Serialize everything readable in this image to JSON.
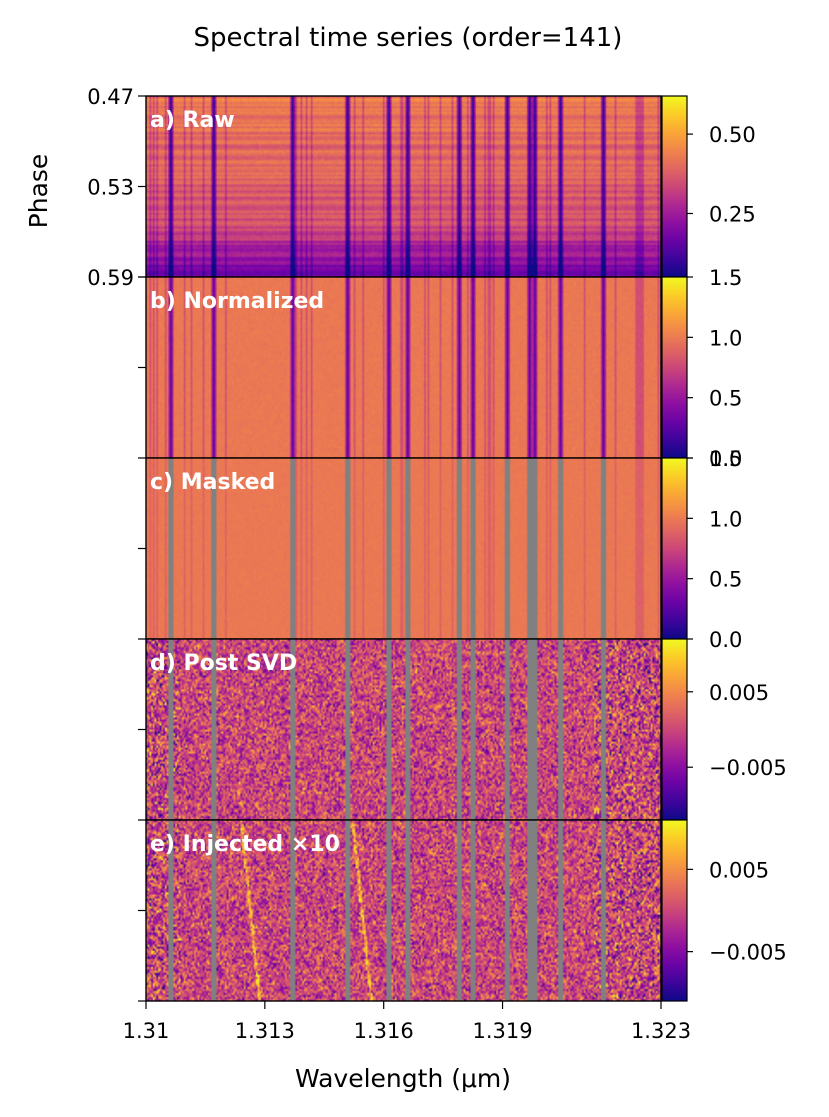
{
  "chart_data": {
    "type": "heatmap",
    "title": "Spectral time series (order=141)",
    "xlabel": "Wavelength (μm)",
    "ylabel": "Phase",
    "xlim": [
      1.31,
      1.323
    ],
    "x_ticks": [
      "1.31",
      "1.313",
      "1.316",
      "1.319",
      "1.323"
    ],
    "x_tick_values": [
      1.31,
      1.313,
      1.316,
      1.319,
      1.323
    ],
    "y_ticks": [
      "0.47",
      "0.53",
      "0.59"
    ],
    "y_tick_values": [
      0.47,
      0.53,
      0.59
    ],
    "colormap": "plasma",
    "mask_color": "#808080",
    "telluric_lines_um": [
      1.31061,
      1.31169,
      1.3137,
      1.31505,
      1.31611,
      1.31657,
      1.31787,
      1.31825,
      1.3191,
      1.31965,
      1.3198,
      1.32045,
      1.32153
    ],
    "panels": [
      {
        "label": "a) Raw",
        "kind": "raw",
        "colorbar": {
          "range": [
            0.05,
            0.62
          ],
          "ticks": [
            "0.25",
            "0.50"
          ],
          "tick_values": [
            0.25,
            0.5
          ]
        }
      },
      {
        "label": "b) Normalized",
        "kind": "normalized",
        "colorbar": {
          "range": [
            0.0,
            1.5
          ],
          "ticks": [
            "0.0",
            "0.5",
            "1.0",
            "1.5"
          ],
          "tick_values": [
            0.0,
            0.5,
            1.0,
            1.5
          ]
        }
      },
      {
        "label": "c) Masked",
        "kind": "masked",
        "colorbar": {
          "range": [
            0.0,
            1.5
          ],
          "ticks": [
            "0.0",
            "0.5",
            "1.0",
            "1.5"
          ],
          "tick_values": [
            0.0,
            0.5,
            1.0,
            1.5
          ]
        }
      },
      {
        "label": "d) Post SVD",
        "kind": "svd",
        "colorbar": {
          "range": [
            -0.012,
            0.012
          ],
          "ticks": [
            "−0.005",
            "0.005"
          ],
          "tick_values": [
            -0.005,
            0.005
          ]
        }
      },
      {
        "label": "e) Injected ×10",
        "kind": "injected",
        "colorbar": {
          "range": [
            -0.011,
            0.011
          ],
          "ticks": [
            "−0.005",
            "0.005"
          ],
          "tick_values": [
            -0.005,
            0.005
          ]
        }
      }
    ]
  }
}
